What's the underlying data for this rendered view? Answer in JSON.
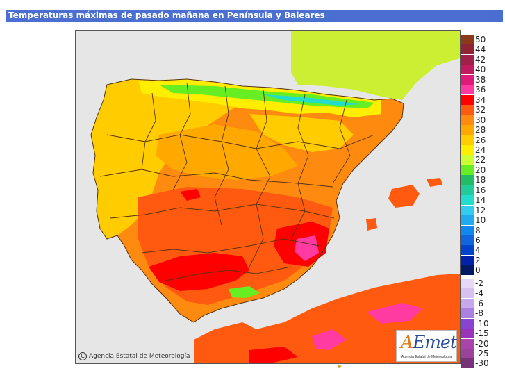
{
  "title": "Temperaturas máximas de pasado mañana en Península y Baleares",
  "credit": {
    "symbol": "C",
    "text": "Agencia Estatal de Meteorología"
  },
  "logo": {
    "mark_a": "A",
    "mark_rest": "Emet",
    "subtitle": "Agencia Estatal de Meteorología"
  },
  "legend": {
    "entries": [
      {
        "label": "50",
        "color": "#8b3a1a"
      },
      {
        "label": "44",
        "color": "#8e2434"
      },
      {
        "label": "42",
        "color": "#a0204a"
      },
      {
        "label": "40",
        "color": "#c21a5e"
      },
      {
        "label": "38",
        "color": "#e01a7a"
      },
      {
        "label": "36",
        "color": "#ff3aa0"
      },
      {
        "label": "34",
        "color": "#ff0000"
      },
      {
        "label": "32",
        "color": "#ff5a10"
      },
      {
        "label": "30",
        "color": "#ff8a10"
      },
      {
        "label": "28",
        "color": "#ffa800"
      },
      {
        "label": "26",
        "color": "#ffcc00"
      },
      {
        "label": "24",
        "color": "#ffee00"
      },
      {
        "label": "22",
        "color": "#ccff33"
      },
      {
        "label": "20",
        "color": "#66ee22"
      },
      {
        "label": "18",
        "color": "#22bb66"
      },
      {
        "label": "16",
        "color": "#22cc99"
      },
      {
        "label": "14",
        "color": "#22ddcc"
      },
      {
        "label": "12",
        "color": "#33ccee"
      },
      {
        "label": "10",
        "color": "#22aaee"
      },
      {
        "label": "8",
        "color": "#1188ee"
      },
      {
        "label": "6",
        "color": "#1166dd"
      },
      {
        "label": "4",
        "color": "#0044cc"
      },
      {
        "label": "2",
        "color": "#0022aa"
      },
      {
        "label": "0",
        "color": "#001a66"
      },
      {
        "label": "-2",
        "color": "#e8d8f8"
      },
      {
        "label": "-4",
        "color": "#d8c0f0"
      },
      {
        "label": "-6",
        "color": "#c8a8ec"
      },
      {
        "label": "-8",
        "color": "#aa80e0"
      },
      {
        "label": "-10",
        "color": "#8844d0"
      },
      {
        "label": "-15",
        "color": "#9933bb"
      },
      {
        "label": "-20",
        "color": "#aa44aa"
      },
      {
        "label": "-25",
        "color": "#994499"
      },
      {
        "label": "-30",
        "color": "#773377"
      }
    ]
  },
  "map_colors": {
    "sea": "#e6e6e6",
    "france": "#ccee33",
    "hot": "#ff8a10",
    "very_hot": "#ff5a10",
    "extreme": "#ff0000",
    "pink": "#ff3aa0",
    "warm": "#ffa800",
    "mild": "#ffcc00",
    "cool": "#ffee00",
    "green": "#66ee22",
    "teal": "#22ddcc",
    "border": "#553311"
  }
}
